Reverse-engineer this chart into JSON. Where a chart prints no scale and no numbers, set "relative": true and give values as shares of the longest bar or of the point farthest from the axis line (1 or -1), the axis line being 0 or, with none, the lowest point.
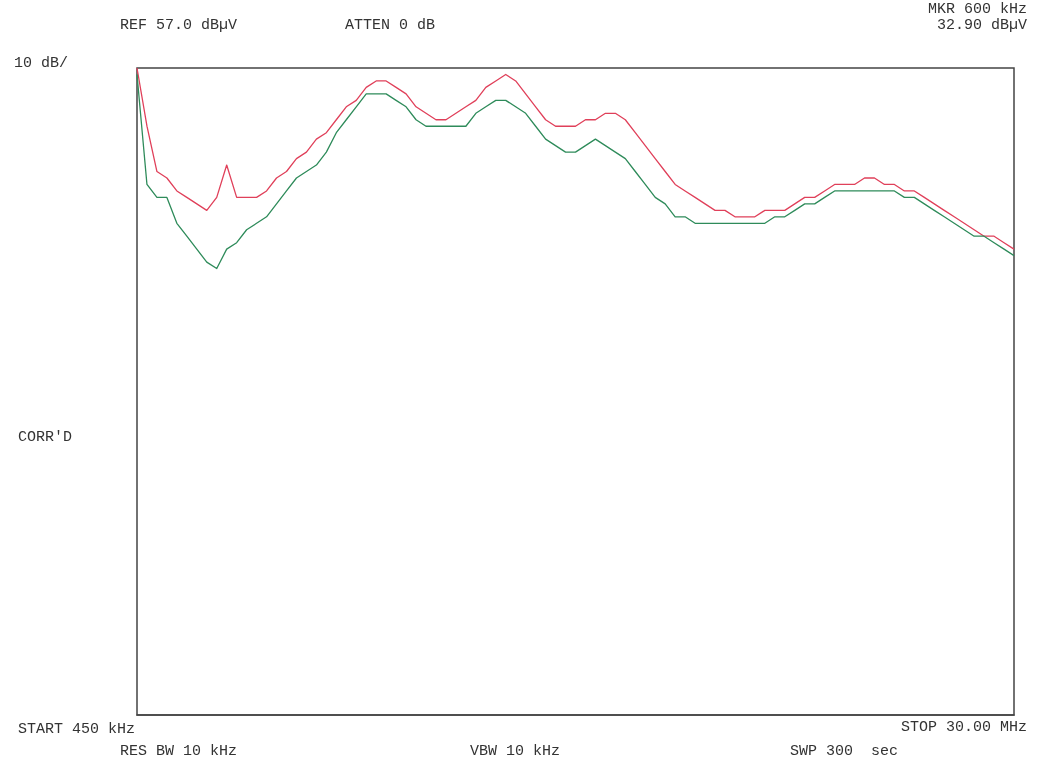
{
  "chart_data": {
    "type": "line",
    "relative": true,
    "annotations": [
      "REF 57.0 dBµV",
      "ATTEN 0 dB",
      "MKR 600 kHz",
      "32.90 dBµV",
      "10 dB/",
      "CORR'D",
      "START 450 kHz",
      "RES BW 10 kHz",
      "VBW 10 kHz",
      "STOP 30.00 MHz",
      "SWP 300  sec"
    ],
    "categories": [
      null,
      null,
      null,
      null,
      null,
      null,
      null,
      null,
      null,
      null,
      null,
      null,
      null,
      null,
      null,
      null,
      null,
      null,
      null,
      null,
      null,
      null,
      null,
      null,
      null,
      null,
      null,
      null,
      null,
      null,
      null,
      null,
      null,
      null,
      null,
      null,
      null,
      null,
      null,
      null,
      null,
      null,
      null,
      null,
      null,
      null,
      null,
      null,
      null,
      null,
      null,
      null,
      null,
      null,
      null,
      null,
      null,
      null,
      null,
      null,
      null,
      null,
      null,
      null,
      null,
      null,
      null,
      null,
      null,
      null,
      null,
      null,
      null,
      null,
      null,
      null,
      null,
      null,
      null,
      null,
      null,
      null,
      null,
      null,
      null,
      null,
      null,
      null,
      null
    ],
    "series": [
      {
        "color": "#e0405a",
        "values": [
          1.0,
          0.91,
          0.84,
          0.83,
          0.81,
          0.8,
          0.79,
          0.78,
          0.8,
          0.85,
          0.8,
          0.8,
          0.8,
          0.81,
          0.83,
          0.84,
          0.86,
          0.87,
          0.89,
          0.9,
          0.92,
          0.94,
          0.95,
          0.97,
          0.98,
          0.98,
          0.97,
          0.96,
          0.94,
          0.93,
          0.92,
          0.92,
          0.93,
          0.94,
          0.95,
          0.97,
          0.98,
          0.99,
          0.98,
          0.96,
          0.94,
          0.92,
          0.91,
          0.91,
          0.91,
          0.92,
          0.92,
          0.93,
          0.93,
          0.92,
          0.9,
          0.88,
          0.86,
          0.84,
          0.82,
          0.81,
          0.8,
          0.79,
          0.78,
          0.78,
          0.77,
          0.77,
          0.77,
          0.78,
          0.78,
          0.78,
          0.79,
          0.8,
          0.8,
          0.81,
          0.82,
          0.82,
          0.82,
          0.83,
          0.83,
          0.82,
          0.82,
          0.81,
          0.81,
          0.8,
          0.79,
          0.78,
          0.77,
          0.76,
          0.75,
          0.74,
          0.74,
          0.73,
          0.72
        ]
      },
      {
        "color": "#2e8b5a",
        "values": [
          0.99,
          0.82,
          0.8,
          0.8,
          0.76,
          0.74,
          0.72,
          0.7,
          0.69,
          0.72,
          0.73,
          0.75,
          0.76,
          0.77,
          0.79,
          0.81,
          0.83,
          0.84,
          0.85,
          0.87,
          0.9,
          0.92,
          0.94,
          0.96,
          0.96,
          0.96,
          0.95,
          0.94,
          0.92,
          0.91,
          0.91,
          0.91,
          0.91,
          0.91,
          0.93,
          0.94,
          0.95,
          0.95,
          0.94,
          0.93,
          0.91,
          0.89,
          0.88,
          0.87,
          0.87,
          0.88,
          0.89,
          0.88,
          0.87,
          0.86,
          0.84,
          0.82,
          0.8,
          0.79,
          0.77,
          0.77,
          0.76,
          0.76,
          0.76,
          0.76,
          0.76,
          0.76,
          0.76,
          0.76,
          0.77,
          0.77,
          0.78,
          0.79,
          0.79,
          0.8,
          0.81,
          0.81,
          0.81,
          0.81,
          0.81,
          0.81,
          0.81,
          0.8,
          0.8,
          0.79,
          0.78,
          0.77,
          0.76,
          0.75,
          0.74,
          0.74,
          0.73,
          0.72,
          0.71
        ]
      }
    ],
    "marker": "none",
    "line_style": "solid"
  }
}
